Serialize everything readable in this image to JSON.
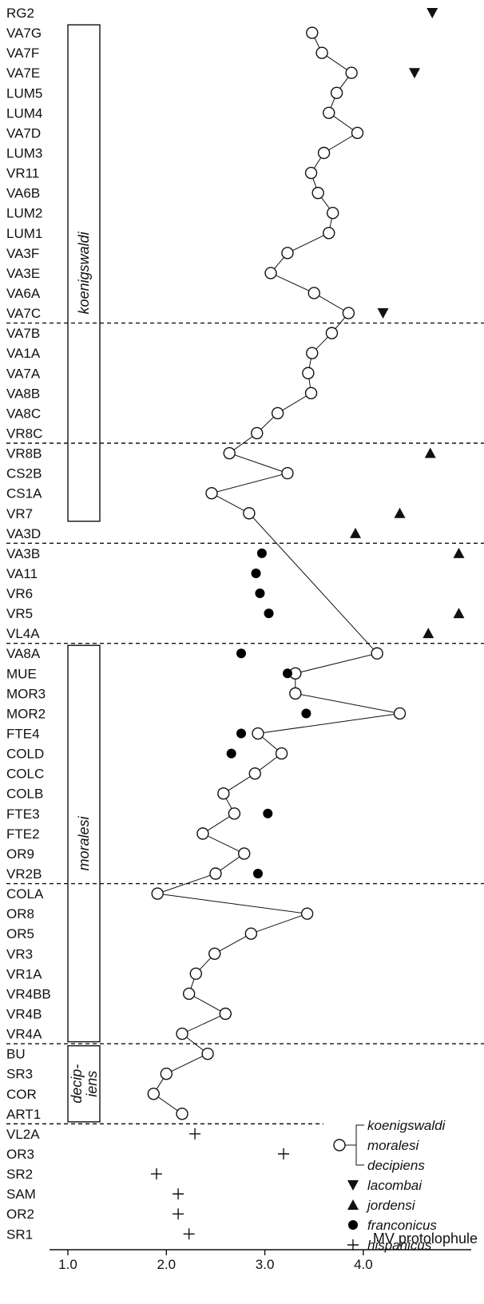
{
  "chart_data": {
    "type": "scatter",
    "xlabel": "MV protolophule",
    "x_ticks": [
      "1.0",
      "2.0",
      "3.0",
      "4.0"
    ],
    "xlim": [
      0.8,
      4.8
    ],
    "sites": [
      "RG2",
      "VA7G",
      "VA7F",
      "VA7E",
      "LUM5",
      "LUM4",
      "VA7D",
      "LUM3",
      "VR11",
      "VA6B",
      "LUM2",
      "LUM1",
      "VA3F",
      "VA3E",
      "VA6A",
      "VA7C",
      "VA7B",
      "VA1A",
      "VA7A",
      "VA8B",
      "VA8C",
      "VR8C",
      "VR8B",
      "CS2B",
      "CS1A",
      "VR7",
      "VA3D",
      "VA3B",
      "VA11",
      "VR6",
      "VR5",
      "VL4A",
      "VA8A",
      "MUE",
      "MOR3",
      "MOR2",
      "FTE4",
      "COLD",
      "COLC",
      "COLB",
      "FTE3",
      "FTE2",
      "OR9",
      "VR2B",
      "COLA",
      "OR8",
      "OR5",
      "VR3",
      "VR1A",
      "VR4BB",
      "VR4B",
      "VR4A",
      "BU",
      "SR3",
      "COR",
      "ART1",
      "VL2A",
      "OR3",
      "SR2",
      "SAM",
      "OR2",
      "SR1"
    ],
    "series": [
      {
        "name": "koenigswaldi / moralesi / decipiens",
        "marker": "open-circle",
        "connected": true,
        "points": [
          {
            "site": "VA7G",
            "x": 3.48
          },
          {
            "site": "VA7F",
            "x": 3.58
          },
          {
            "site": "VA7E",
            "x": 3.88
          },
          {
            "site": "LUM5",
            "x": 3.73
          },
          {
            "site": "LUM4",
            "x": 3.65
          },
          {
            "site": "VA7D",
            "x": 3.94
          },
          {
            "site": "LUM3",
            "x": 3.6
          },
          {
            "site": "VR11",
            "x": 3.47
          },
          {
            "site": "VA6B",
            "x": 3.54
          },
          {
            "site": "LUM2",
            "x": 3.69
          },
          {
            "site": "LUM1",
            "x": 3.65
          },
          {
            "site": "VA3F",
            "x": 3.23
          },
          {
            "site": "VA3E",
            "x": 3.06
          },
          {
            "site": "VA6A",
            "x": 3.5
          },
          {
            "site": "VA7C",
            "x": 3.85
          },
          {
            "site": "VA7B",
            "x": 3.68
          },
          {
            "site": "VA1A",
            "x": 3.48
          },
          {
            "site": "VA7A",
            "x": 3.44
          },
          {
            "site": "VA8B",
            "x": 3.47
          },
          {
            "site": "VA8C",
            "x": 3.13
          },
          {
            "site": "VR8C",
            "x": 2.92
          },
          {
            "site": "VR8B",
            "x": 2.64
          },
          {
            "site": "CS2B",
            "x": 3.23
          },
          {
            "site": "CS1A",
            "x": 2.46
          },
          {
            "site": "VR7",
            "x": 2.84
          },
          {
            "site": "VA8A",
            "x": 4.14
          },
          {
            "site": "MUE",
            "x": 3.31
          },
          {
            "site": "MOR3",
            "x": 3.31
          },
          {
            "site": "MOR2",
            "x": 4.37
          },
          {
            "site": "FTE4",
            "x": 2.93
          },
          {
            "site": "COLD",
            "x": 3.17
          },
          {
            "site": "COLC",
            "x": 2.9
          },
          {
            "site": "COLB",
            "x": 2.58
          },
          {
            "site": "FTE3",
            "x": 2.69
          },
          {
            "site": "FTE2",
            "x": 2.37
          },
          {
            "site": "OR9",
            "x": 2.79
          },
          {
            "site": "VR2B",
            "x": 2.5
          },
          {
            "site": "COLA",
            "x": 1.91
          },
          {
            "site": "OR8",
            "x": 3.43
          },
          {
            "site": "OR5",
            "x": 2.86
          },
          {
            "site": "VR3",
            "x": 2.49
          },
          {
            "site": "VR1A",
            "x": 2.3
          },
          {
            "site": "VR4BB",
            "x": 2.23
          },
          {
            "site": "VR4B",
            "x": 2.6
          },
          {
            "site": "VR4A",
            "x": 2.16
          },
          {
            "site": "BU",
            "x": 2.42
          },
          {
            "site": "SR3",
            "x": 2.0
          },
          {
            "site": "COR",
            "x": 1.87
          },
          {
            "site": "ART1",
            "x": 2.16
          }
        ]
      },
      {
        "name": "lacombai",
        "marker": "down-triangle",
        "points": [
          {
            "site": "RG2",
            "x": 4.7
          },
          {
            "site": "VA7E",
            "x": 4.52
          },
          {
            "site": "VA7C",
            "x": 4.2
          }
        ]
      },
      {
        "name": "jordensi",
        "marker": "up-triangle",
        "points": [
          {
            "site": "VR8B",
            "x": 4.68
          },
          {
            "site": "VR7",
            "x": 4.37
          },
          {
            "site": "VA3D",
            "x": 3.92
          },
          {
            "site": "VA3B",
            "x": 4.97
          },
          {
            "site": "VR5",
            "x": 4.97
          },
          {
            "site": "VL4A",
            "x": 4.66
          }
        ]
      },
      {
        "name": "franconicus",
        "marker": "filled-circle",
        "points": [
          {
            "site": "VA3B",
            "x": 2.97
          },
          {
            "site": "VA11",
            "x": 2.91
          },
          {
            "site": "VR6",
            "x": 2.95
          },
          {
            "site": "VR5",
            "x": 3.04
          },
          {
            "site": "VA8A",
            "x": 2.76
          },
          {
            "site": "MUE",
            "x": 3.23
          },
          {
            "site": "MOR2",
            "x": 3.42
          },
          {
            "site": "FTE4",
            "x": 2.76
          },
          {
            "site": "COLD",
            "x": 2.66
          },
          {
            "site": "FTE3",
            "x": 3.03
          },
          {
            "site": "VR2B",
            "x": 2.93
          }
        ]
      },
      {
        "name": "hispanicus",
        "marker": "plus",
        "points": [
          {
            "site": "VL2A",
            "x": 2.29
          },
          {
            "site": "OR3",
            "x": 3.19
          },
          {
            "site": "SR2",
            "x": 1.9
          },
          {
            "site": "SAM",
            "x": 2.12
          },
          {
            "site": "OR2",
            "x": 2.12
          },
          {
            "site": "SR1",
            "x": 2.23
          }
        ]
      }
    ],
    "zones": [
      {
        "label": "koenigswaldi",
        "from": "VA7G",
        "to": "VR7"
      },
      {
        "label": "moralesi",
        "from": "VA8A",
        "to": "VR4A"
      },
      {
        "label": "decip-\niens",
        "from": "BU",
        "to": "ART1"
      }
    ],
    "separators_after": [
      "VA7C",
      "VR8C",
      "VA3D",
      "VL4A",
      "VR2B",
      "VR4A",
      "ART1"
    ],
    "legend": {
      "placement": "bottom-right",
      "entries": [
        {
          "label": "koenigswaldi",
          "marker": "open-circle-group"
        },
        {
          "label": "moralesi",
          "marker": "open-circle-group"
        },
        {
          "label": "decipiens",
          "marker": "open-circle-group"
        },
        {
          "label": "lacombai",
          "marker": "down-triangle"
        },
        {
          "label": "jordensi",
          "marker": "up-triangle"
        },
        {
          "label": "franconicus",
          "marker": "filled-circle"
        },
        {
          "label": "hispanicus",
          "marker": "plus"
        }
      ]
    }
  }
}
